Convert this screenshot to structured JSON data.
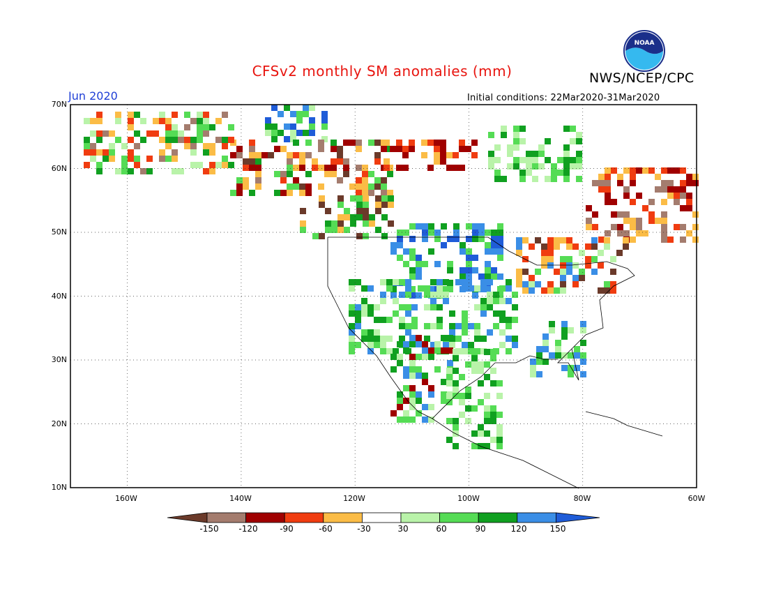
{
  "header": {
    "title": "CFSv2 monthly SM anomalies (mm)",
    "org": "NWS/NCEP/CPC",
    "logo_text": "NOAA",
    "month": "Jun 2020",
    "initial_conditions": "Initial conditions: 22Mar2020-31Mar2020"
  },
  "map": {
    "lat_labels": [
      "70N",
      "60N",
      "50N",
      "40N",
      "30N",
      "20N",
      "10N"
    ],
    "lon_labels": [
      "160W",
      "140W",
      "120W",
      "100W",
      "80W",
      "60W"
    ],
    "lat_range": [
      10,
      70
    ],
    "lon_range": [
      -170,
      -60
    ]
  },
  "colorbar": {
    "levels": [
      "-150",
      "-120",
      "-90",
      "-60",
      "-30",
      "30",
      "60",
      "90",
      "120",
      "150"
    ],
    "colors": [
      "#6b3a2a",
      "#a47c6e",
      "#a00000",
      "#f03c10",
      "#fbbc46",
      "#ffffff",
      "#b9f3a9",
      "#55dc55",
      "#10a020",
      "#3a8ee6",
      "#1f5cd8"
    ]
  }
}
